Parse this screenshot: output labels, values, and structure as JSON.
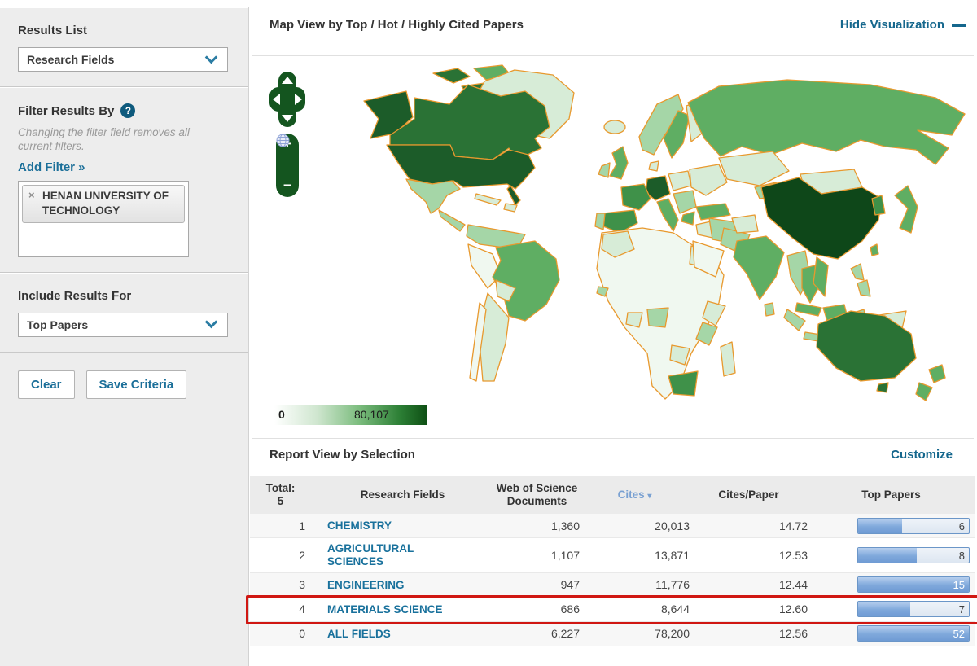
{
  "sidebar": {
    "results_list_label": "Results List",
    "results_list_value": "Research Fields",
    "filter_title": "Filter Results By",
    "filter_help": "?",
    "filter_note": "Changing the filter field removes all current filters.",
    "add_filter_label": "Add Filter »",
    "filter_tag": {
      "remove": "×",
      "text": "HENAN UNIVERSITY OF TECHNOLOGY"
    },
    "include_label": "Include Results For",
    "include_value": "Top Papers",
    "clear_button": "Clear",
    "save_button": "Save Criteria"
  },
  "map": {
    "title": "Map View by Top / Hot / Highly Cited Papers",
    "hide_link": "Hide Visualization",
    "legend_min": "0",
    "legend_max": "80,107",
    "zoom_in": "+",
    "zoom_out": "−",
    "border_color": "#e8992e",
    "palette": {
      "p0": "#ffffff",
      "p1": "#f0f8f0",
      "p2": "#d7ecd7",
      "p3": "#a5d6a7",
      "p4": "#5fae63",
      "p5": "#3f9149",
      "p6": "#2a7235",
      "p7": "#1c5c29",
      "p8": "#0e4719"
    },
    "country_levels_note": "white=no data, p8 darkest (China), p7 USA/Germany, p6 Canada/Australia, p4 Russia/Brazil/UK/India/Japan, pale greens elsewhere"
  },
  "report": {
    "title": "Report View by Selection",
    "customize_link": "Customize",
    "table": {
      "col_total_line1": "Total:",
      "col_total_line2": "5",
      "col_fields": "Research Fields",
      "col_docs_line1": "Web of Science",
      "col_docs_line2": "Documents",
      "col_cites": "Cites",
      "col_cites_sort": "▾",
      "col_cpp": "Cites/Paper",
      "col_top": "Top Papers",
      "rows": [
        {
          "rank": "1",
          "field": "CHEMISTRY",
          "docs": "1,360",
          "cites": "20,013",
          "cpp": "14.72",
          "top_papers": "6",
          "bar_pct": 40,
          "highlight": false
        },
        {
          "rank": "2",
          "field": "AGRICULTURAL SCIENCES",
          "docs": "1,107",
          "cites": "13,871",
          "cpp": "12.53",
          "top_papers": "8",
          "bar_pct": 53,
          "highlight": false
        },
        {
          "rank": "3",
          "field": "ENGINEERING",
          "docs": "947",
          "cites": "11,776",
          "cpp": "12.44",
          "top_papers": "15",
          "bar_pct": 100,
          "highlight": false
        },
        {
          "rank": "4",
          "field": "MATERIALS SCIENCE",
          "docs": "686",
          "cites": "8,644",
          "cpp": "12.60",
          "top_papers": "7",
          "bar_pct": 47,
          "highlight": true
        },
        {
          "rank": "0",
          "field": "ALL FIELDS",
          "docs": "6,227",
          "cites": "78,200",
          "cpp": "12.56",
          "top_papers": "52",
          "bar_pct": 100,
          "highlight": false
        }
      ]
    }
  },
  "highlight_color": "#d01712"
}
